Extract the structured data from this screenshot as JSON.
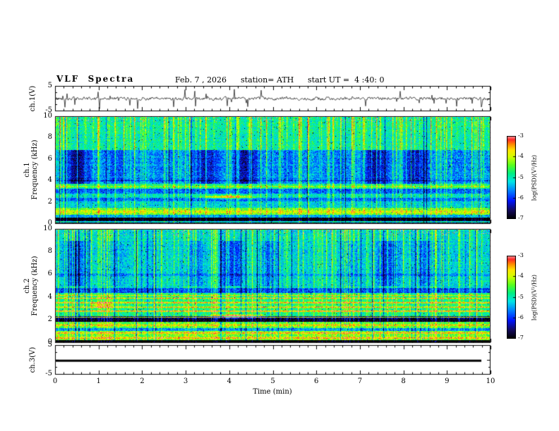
{
  "header": {
    "title": "VLF  Spectra",
    "date": "Feb. 7 , 2026",
    "station": "station= ATH",
    "start_ut": "start UT =  4 :40: 0"
  },
  "x_axis": {
    "label": "Time (min)",
    "ticks": [
      0,
      1,
      2,
      3,
      4,
      5,
      6,
      7,
      8,
      9,
      10
    ],
    "lim": [
      0,
      10
    ]
  },
  "colorbar": {
    "label": "log(PSD)(V²/Hz)",
    "ticks": [
      -3,
      -4,
      -5,
      -6,
      -7
    ],
    "lim": [
      -7,
      -3
    ]
  },
  "panels": {
    "ch1_wave": {
      "ylabel": "ch.1(V)",
      "yticks": [
        5,
        -5
      ],
      "ylim": [
        -5,
        5
      ]
    },
    "ch1_spec": {
      "ylabel_line1": "ch.1",
      "ylabel_line2": "Frequency (kHz)",
      "yticks": [
        10,
        8,
        6,
        4,
        2,
        0
      ],
      "ylim": [
        0,
        10
      ]
    },
    "ch2_spec": {
      "ylabel_line1": "ch.2",
      "ylabel_line2": "Frequency (kHz)",
      "yticks": [
        10,
        8,
        6,
        4,
        2,
        0
      ],
      "ylim": [
        0,
        10
      ]
    },
    "ch3_wave": {
      "ylabel": "ch.3(V)",
      "yticks": [
        5,
        -5
      ],
      "ylim": [
        -5,
        5
      ]
    }
  },
  "chart_data": [
    {
      "type": "line",
      "name": "ch1_waveform",
      "ylabel": "ch.1(V)",
      "xlim": [
        0,
        10
      ],
      "ylim": [
        -5,
        5
      ],
      "description": "Broadband VLF receiver time series: continuous noise band of rms ~0.7 V centered on 0 V with frequent impulsive sferic spikes reaching about ±4 V over the full 10 minutes.",
      "render": {
        "seed": 42,
        "noise": 0.55,
        "spike_prob": 0.055,
        "spike_amp": 3.2
      }
    },
    {
      "type": "heatmap",
      "name": "ch1_spectrogram",
      "ylabel": "ch.1 Frequency (kHz)",
      "xlim": [
        0,
        10
      ],
      "ylim": [
        0,
        10
      ],
      "zlim": [
        -7,
        -3
      ],
      "zlabel": "log(PSD)(V²/Hz)",
      "description": "Dense sferic spectrogram: cyan-green background near -5; quasi-periodic dark-blue low-power patches (~1 min spacing) between 3.7 and 6.9 kHz; bright vertical sferic streaks spanning all frequencies; dark bands near 2-3 kHz; bright band 0.8-1.5 kHz; black band below 0.5 kHz with a bright line at the very bottom; red speckle at the 10 kHz edge.",
      "render": {
        "seed": 12345,
        "base": -5.05,
        "bands": [
          {
            "f": [
              0,
              0.5
            ],
            "dl": -2.2
          },
          {
            "f": [
              0.5,
              0.75
            ],
            "dl": -0.5
          },
          {
            "f": [
              0.75,
              1.45
            ],
            "dl": 0.5
          },
          {
            "f": [
              1.45,
              2.0
            ],
            "dl": -0.2
          },
          {
            "f": [
              2.0,
              2.35
            ],
            "dl": -0.75
          },
          {
            "f": [
              2.35,
              2.8
            ],
            "dl": -0.15
          },
          {
            "f": [
              2.8,
              3.25
            ],
            "dl": -0.75
          },
          {
            "f": [
              3.25,
              3.7
            ],
            "dl": 0.1
          },
          {
            "f": [
              3.7,
              6.9
            ],
            "dl": -0.5
          },
          {
            "f": [
              6.9,
              10
            ],
            "dl": 0.05
          }
        ],
        "lines": [
          {
            "f": 0.1,
            "w": 0.07,
            "amp": 2.6
          },
          {
            "f": 1.05,
            "w": 0.18,
            "amp": 0.5
          },
          {
            "f": 3.45,
            "w": 0.07,
            "amp": 0.8
          },
          {
            "f": 4.0,
            "w": 0.06,
            "amp": -0.6
          }
        ],
        "patch": {
          "f": [
            3.7,
            6.9
          ],
          "period": 0.98,
          "depth": 1.0
        },
        "streak_density": 0.22,
        "streak_amp": 1.05,
        "blobs": [
          {
            "t": 4.0,
            "f": 2.45,
            "tw": 0.55,
            "fw": 0.16,
            "amp": 1.7
          }
        ]
      }
    },
    {
      "type": "heatmap",
      "name": "ch2_spectrogram",
      "ylabel": "ch.2 Frequency (kHz)",
      "xlim": [
        0,
        10
      ],
      "ylim": [
        0,
        10
      ],
      "zlim": [
        -7,
        -3
      ],
      "zlabel": "log(PSD)(V²/Hz)",
      "description": "Second-channel spectrogram: similar sferic streaks above 5 kHz with weaker blue patches; bright yellow-orange horizontal hum lines near 2.75, 3.1, 3.5, 3.9 and 4.15 kHz; strong black band 1.8-2.3 kHz containing a narrow bright line at 2.2 kHz; bright green bands below 1.8 kHz; orange blob near 4.2 min / 2.3 kHz.",
      "render": {
        "seed": 777,
        "base": -5.0,
        "bands": [
          {
            "f": [
              0,
              0.15
            ],
            "dl": -2.3
          },
          {
            "f": [
              0.15,
              1.0
            ],
            "dl": 0.55
          },
          {
            "f": [
              1.0,
              1.25
            ],
            "dl": -0.6
          },
          {
            "f": [
              1.25,
              1.8
            ],
            "dl": 0.5
          },
          {
            "f": [
              1.8,
              2.3
            ],
            "dl": -1.9
          },
          {
            "f": [
              2.3,
              4.35
            ],
            "dl": 0.15
          },
          {
            "f": [
              4.35,
              4.8
            ],
            "dl": -0.95
          },
          {
            "f": [
              4.8,
              10
            ],
            "dl": -0.2
          }
        ],
        "lines": [
          {
            "f": 0.35,
            "w": 0.08,
            "amp": 1.1
          },
          {
            "f": 0.8,
            "w": 0.07,
            "amp": 1.0
          },
          {
            "f": 1.5,
            "w": 0.07,
            "amp": 0.9
          },
          {
            "f": 2.2,
            "w": 0.04,
            "amp": 2.9
          },
          {
            "f": 2.75,
            "w": 0.06,
            "amp": 1.5
          },
          {
            "f": 3.1,
            "w": 0.06,
            "amp": 1.3
          },
          {
            "f": 3.5,
            "w": 0.06,
            "amp": 1.5
          },
          {
            "f": 3.9,
            "w": 0.06,
            "amp": 1.2
          },
          {
            "f": 4.15,
            "w": 0.05,
            "amp": 0.9
          },
          {
            "f": 6.0,
            "w": 0.1,
            "amp": -0.4
          }
        ],
        "patch": {
          "f": [
            5.0,
            9.0
          ],
          "period": 0.9,
          "depth": 0.85
        },
        "streak_density": 0.22,
        "streak_amp": 1.0,
        "blobs": [
          {
            "t": 4.15,
            "f": 2.3,
            "tw": 0.5,
            "fw": 0.15,
            "amp": 2.0
          },
          {
            "t": 1.0,
            "f": 3.3,
            "tw": 0.25,
            "fw": 0.2,
            "amp": 0.8
          }
        ]
      }
    },
    {
      "type": "line",
      "name": "ch3_waveform",
      "ylabel": "ch.3(V)",
      "xlim": [
        0,
        10
      ],
      "ylim": [
        -5,
        5
      ],
      "description": "Channel 3 is flat (no signal): a constant thick black trace at about -0.3 V extending to roughly 9.8 min.",
      "render": {
        "value": -0.3,
        "x_end": 9.8,
        "thickness": 3
      }
    }
  ]
}
